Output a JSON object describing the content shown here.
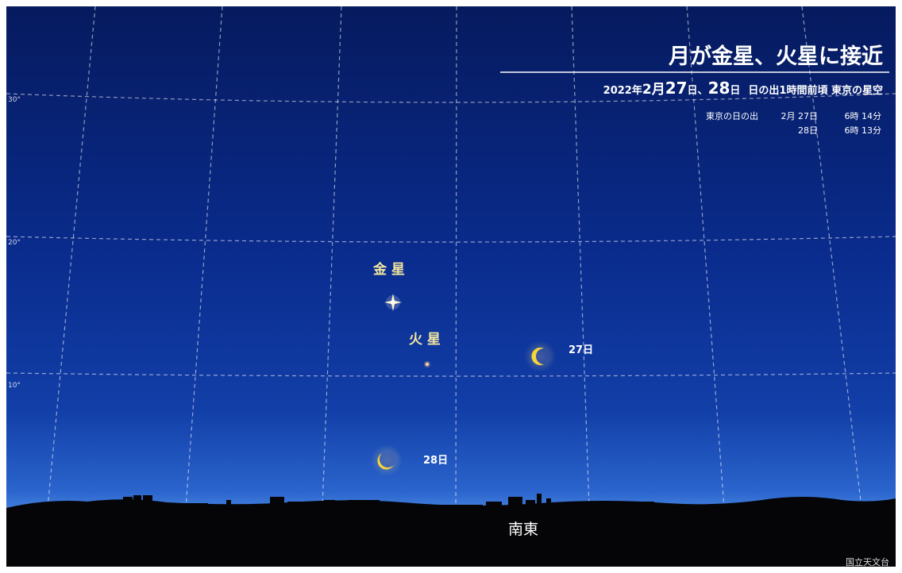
{
  "title": "月が金星、火星に接近",
  "subtitle": {
    "year": "2022年",
    "date1": "2月",
    "d27": "27",
    "day_a": "日、",
    "d28": "28",
    "day_b": "日",
    "rest": "日の出1時間前頃 東京の星空"
  },
  "sunrise": {
    "label": "東京の日の出",
    "row1_date": "2月 27日",
    "row1_time": "6時 14分",
    "row2_date": "28日",
    "row2_time": "6時 13分"
  },
  "altitude_labels": [
    "30°",
    "20°",
    "10°"
  ],
  "objects": {
    "venus": {
      "label": "金 星",
      "color": "#fff6c8"
    },
    "mars": {
      "label": "火 星",
      "color": "#ffcc88"
    },
    "moon27": {
      "label": "27日"
    },
    "moon28": {
      "label": "28日"
    }
  },
  "direction": "南東",
  "credit": "国立天文台",
  "colors": {
    "sky_top": "#061a5e",
    "sky_mid": "#0b2f96",
    "horizon_glow": "#5f9ef2",
    "moon": "#f5d53a",
    "label_yellow": "#f3e6a0"
  }
}
